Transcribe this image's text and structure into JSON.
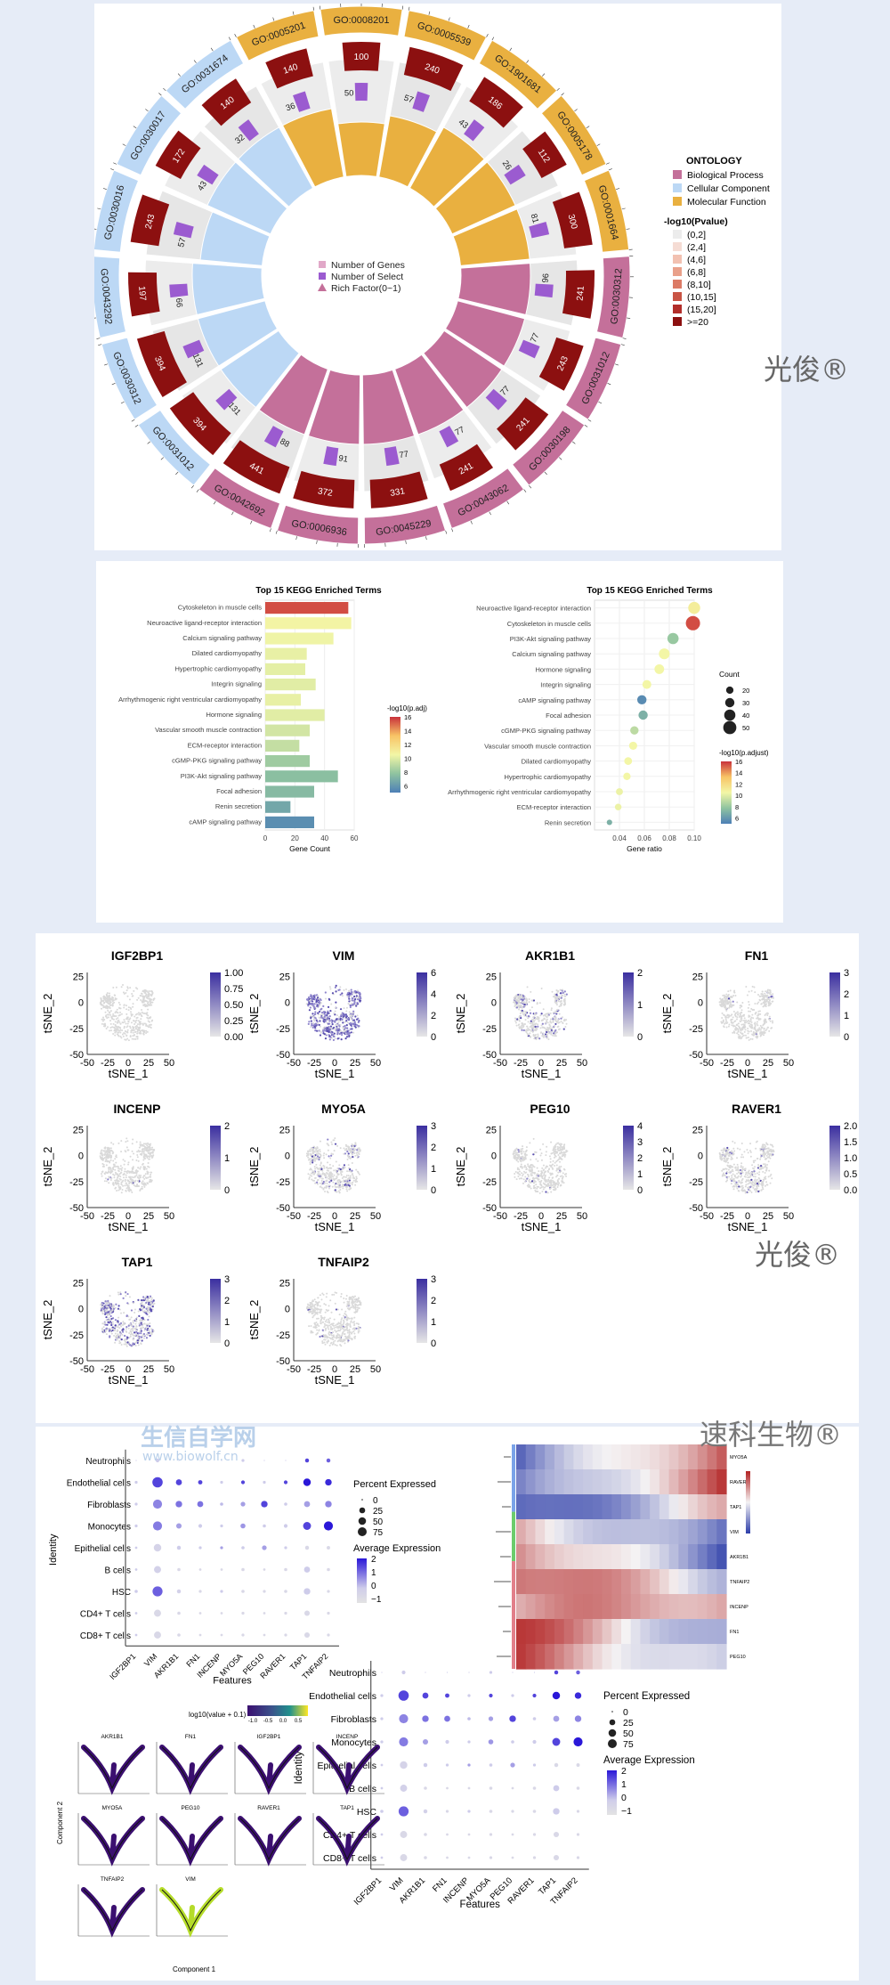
{
  "watermarks": {
    "brand1": "光俊®",
    "brand2": "光俊®",
    "brand3": "速科生物®",
    "site": "生信自学网",
    "url": "www.biowolf.cn"
  },
  "chart_data": [
    {
      "type": "circular-go",
      "terms": [
        {
          "id": "GO:0008201",
          "cls": "MF",
          "bg": 300,
          "sel": 100,
          "n2": 50
        },
        {
          "id": "GO:0005539",
          "cls": "MF",
          "bg": 300,
          "sel": 240,
          "n2": 57
        },
        {
          "id": "GO:1901681",
          "cls": "MF",
          "bg": 300,
          "sel": 186,
          "n2": 43
        },
        {
          "id": "GO:0005178",
          "cls": "MF",
          "bg": 300,
          "sel": 112,
          "n2": 26
        },
        {
          "id": "GO:0001664",
          "cls": "MF",
          "bg": 400,
          "sel": 300,
          "n2": 81
        },
        {
          "id": "GO:0030312",
          "cls": "BP",
          "bg": 400,
          "sel": 241,
          "n2": 96
        },
        {
          "id": "GO:0031012",
          "cls": "BP",
          "bg": 400,
          "sel": 243,
          "n2": 77
        },
        {
          "id": "GO:0030198",
          "cls": "BP",
          "bg": 400,
          "sel": 241,
          "n2": 77
        },
        {
          "id": "GO:0043062",
          "cls": "BP",
          "bg": 400,
          "sel": 241,
          "n2": 77
        },
        {
          "id": "GO:0045229",
          "cls": "BP",
          "bg": 400,
          "sel": 331,
          "n2": 77
        },
        {
          "id": "GO:0006936",
          "cls": "BP",
          "bg": 400,
          "sel": 372,
          "n2": 91
        },
        {
          "id": "GO:0042692",
          "cls": "BP",
          "bg": 400,
          "sel": 441,
          "n2": 88
        },
        {
          "id": "GO:0031012",
          "cls": "CC",
          "bg": 400,
          "sel": 394,
          "n2": 131
        },
        {
          "id": "GO:0030312",
          "cls": "CC",
          "bg": 400,
          "sel": 394,
          "n2": 131
        },
        {
          "id": "GO:0043292",
          "cls": "CC",
          "bg": 400,
          "sel": 197,
          "n2": 66
        },
        {
          "id": "GO:0030016",
          "cls": "CC",
          "bg": 400,
          "sel": 243,
          "n2": 57
        },
        {
          "id": "GO:0030017",
          "cls": "CC",
          "bg": 400,
          "sel": 172,
          "n2": 43
        },
        {
          "id": "GO:0031674",
          "cls": "CC",
          "bg": 300,
          "sel": 140,
          "n2": 32
        },
        {
          "id": "GO:0005201",
          "cls": "MF",
          "bg": 300,
          "sel": 140,
          "n2": 36
        }
      ],
      "inner_legend": [
        "Number of Genes",
        "Number of Select",
        "Rich Factor(0~1)"
      ],
      "ontology_title": "ONTOLOGY",
      "ontology": [
        {
          "label": "Biological Process",
          "color": "#c4709a"
        },
        {
          "label": "Cellular Component",
          "color": "#bcd8f5"
        },
        {
          "label": "Molecular Function",
          "color": "#e9b040"
        }
      ],
      "pvalue_title": "-log10(Pvalue)",
      "pvalue_bins": [
        {
          "label": "(0,2]",
          "color": "#ececec"
        },
        {
          "label": "(2,4]",
          "color": "#f5dcd4"
        },
        {
          "label": "(4,6]",
          "color": "#f2c1b1"
        },
        {
          "label": "(6,8]",
          "color": "#e9a08a"
        },
        {
          "label": "(8,10]",
          "color": "#dc7b66"
        },
        {
          "label": "(10,15]",
          "color": "#c95445"
        },
        {
          "label": "(15,20]",
          "color": "#b22e2a"
        },
        {
          "label": ">=20",
          "color": "#8c1010"
        }
      ]
    },
    {
      "type": "bar",
      "title": "Top 15 KEGG Enriched Terms",
      "xlabel": "Gene Count",
      "legend_title": "-log10(p.adj)",
      "legend_ticks": [
        6,
        8,
        10,
        12,
        14,
        16
      ],
      "xlim": [
        0,
        60
      ],
      "xticks": [
        0,
        20,
        40,
        60
      ],
      "categories": [
        "Cytoskeleton in muscle cells",
        "Neuroactive ligand-receptor interaction",
        "Calcium signaling pathway",
        "Dilated cardiomyopathy",
        "Hypertrophic cardiomyopathy",
        "Integrin signaling",
        "Arrhythmogenic right ventricular cardiomyopathy",
        "Hormone signaling",
        "Vascular smooth muscle contraction",
        "ECM-receptor interaction",
        "cGMP-PKG signaling pathway",
        "PI3K-Akt signaling pathway",
        "Focal adhesion",
        "Renin secretion",
        "cAMP signaling pathway"
      ],
      "values": [
        56,
        58,
        46,
        28,
        27,
        34,
        24,
        40,
        30,
        23,
        30,
        49,
        33,
        17,
        33
      ],
      "color_values": [
        15.5,
        10.6,
        10.4,
        10.2,
        10.1,
        10.0,
        10.2,
        10.0,
        9.6,
        9.2,
        8.2,
        7.6,
        7.4,
        6.6,
        5.6
      ]
    },
    {
      "type": "scatter",
      "title": "Top 15 KEGG Enriched Terms",
      "xlabel": "Gene ratio",
      "size_title": "Count",
      "size_ticks": [
        20,
        30,
        40,
        50
      ],
      "color_title": "-log10(p.adjust)",
      "color_ticks": [
        6,
        8,
        10,
        12,
        14,
        16
      ],
      "xlim": [
        0.02,
        0.1
      ],
      "xticks": [
        0.04,
        0.06,
        0.08,
        0.1
      ],
      "xtick_labels": [
        "0.04",
        "0.06",
        "0.08",
        "0.10"
      ],
      "categories": [
        "Neuroactive ligand-receptor interaction",
        "Cytoskeleton in muscle cells",
        "PI3K-Akt signaling pathway",
        "Calcium signaling pathway",
        "Hormone signaling",
        "Integrin signaling",
        "cAMP signaling pathway",
        "Focal adhesion",
        "cGMP-PKG signaling pathway",
        "Vascular smooth muscle contraction",
        "Dilated cardiomyopathy",
        "Hypertrophic cardiomyopathy",
        "Arrhythmogenic right ventricular cardiomyopathy",
        "ECM-receptor interaction",
        "Renin secretion"
      ],
      "x": [
        0.1,
        0.099,
        0.083,
        0.076,
        0.072,
        0.062,
        0.058,
        0.059,
        0.052,
        0.051,
        0.047,
        0.046,
        0.04,
        0.039,
        0.032
      ],
      "count": [
        44,
        56,
        40,
        38,
        32,
        28,
        30,
        30,
        25,
        24,
        22,
        20,
        18,
        16,
        10
      ],
      "color": [
        11,
        15.5,
        8,
        10.5,
        10.5,
        10.5,
        5.5,
        7,
        9,
        10.5,
        10.5,
        10.5,
        10.3,
        10.3,
        7
      ]
    },
    {
      "type": "scatter-grid",
      "xlabel": "tSNE_1",
      "ylabel": "tSNE_2",
      "xticks": [
        -50,
        -25,
        0,
        25,
        50
      ],
      "yticks": [
        -50,
        -25,
        0,
        25
      ],
      "panels": [
        {
          "gene": "IGF2BP1",
          "ticks": [
            "1.00",
            "0.75",
            "0.50",
            "0.25",
            "0.00"
          ],
          "density": 0.0
        },
        {
          "gene": "VIM",
          "ticks": [
            "6",
            "4",
            "2",
            "0"
          ],
          "density": 0.7
        },
        {
          "gene": "AKR1B1",
          "ticks": [
            "2",
            "1",
            "0"
          ],
          "density": 0.15
        },
        {
          "gene": "FN1",
          "ticks": [
            "3",
            "2",
            "1",
            "0"
          ],
          "density": 0.02
        },
        {
          "gene": "INCENP",
          "ticks": [
            "2",
            "1",
            "0"
          ],
          "density": 0.01
        },
        {
          "gene": "MYO5A",
          "ticks": [
            "3",
            "2",
            "1",
            "0"
          ],
          "density": 0.12
        },
        {
          "gene": "PEG10",
          "ticks": [
            "4",
            "3",
            "2",
            "1",
            "0"
          ],
          "density": 0.02
        },
        {
          "gene": "RAVER1",
          "ticks": [
            "2.0",
            "1.5",
            "1.0",
            "0.5",
            "0.0"
          ],
          "density": 0.05
        },
        {
          "gene": "TAP1",
          "ticks": [
            "3",
            "2",
            "1",
            "0"
          ],
          "density": 0.4
        },
        {
          "gene": "TNFAIP2",
          "ticks": [
            "3",
            "2",
            "1",
            "0"
          ],
          "density": 0.03
        }
      ]
    },
    {
      "type": "dotplot",
      "xlabel": "Features",
      "ylabel": "Identity",
      "features": [
        "IGF2BP1",
        "VIM",
        "AKR1B1",
        "FN1",
        "INCENP",
        "MYO5A",
        "PEG10",
        "RAVER1",
        "TAP1",
        "TNFAIP2"
      ],
      "identities": [
        "Neutrophils",
        "Endothelial cells",
        "Fibroblasts",
        "Monocytes",
        "Epithelial cells",
        "B cells",
        "HSC",
        "CD4+ T cells",
        "CD8+ T cells"
      ],
      "pct_title": "Percent Expressed",
      "pct_ticks": [
        "0",
        "25",
        "50",
        "75"
      ],
      "avg_title": "Average Expression",
      "avg_ticks": [
        "2",
        "1",
        "0",
        "−1"
      ],
      "pct": [
        [
          0,
          5,
          0,
          0,
          0,
          2,
          0,
          0,
          6,
          6
        ],
        [
          2,
          75,
          20,
          8,
          2,
          5,
          2,
          5,
          35,
          25
        ],
        [
          2,
          55,
          25,
          20,
          3,
          10,
          25,
          3,
          20,
          25
        ],
        [
          2,
          55,
          15,
          5,
          2,
          12,
          3,
          5,
          40,
          55
        ],
        [
          1,
          35,
          6,
          2,
          2,
          3,
          10,
          2,
          6,
          4
        ],
        [
          1,
          30,
          3,
          1,
          1,
          3,
          1,
          3,
          20,
          3
        ],
        [
          3,
          70,
          6,
          2,
          2,
          3,
          2,
          3,
          25,
          2
        ],
        [
          1,
          30,
          3,
          1,
          1,
          2,
          1,
          2,
          15,
          2
        ],
        [
          1,
          30,
          3,
          1,
          1,
          2,
          1,
          2,
          15,
          2
        ]
      ],
      "avg": [
        [
          0,
          0,
          0,
          0,
          0,
          0,
          0,
          0,
          1.5,
          1.2
        ],
        [
          0,
          1.5,
          1.5,
          1.5,
          0,
          1.5,
          0,
          1.5,
          2,
          1.8
        ],
        [
          0,
          0.8,
          1,
          1,
          0.2,
          0.5,
          1.5,
          0,
          0.5,
          0.8
        ],
        [
          0,
          0.9,
          0.5,
          0,
          0,
          0.6,
          0,
          0,
          1.5,
          2
        ],
        [
          0,
          -0.3,
          0,
          0,
          0.5,
          0,
          0.5,
          0,
          -0.5,
          -0.5
        ],
        [
          0,
          -0.2,
          -0.5,
          -0.5,
          -0.5,
          -0.5,
          -0.5,
          -0.5,
          0,
          -0.5
        ],
        [
          0,
          1.2,
          -0.2,
          -0.5,
          0,
          -0.5,
          -0.5,
          -0.5,
          0,
          -0.5
        ],
        [
          0,
          -0.5,
          -0.5,
          -0.5,
          -0.5,
          -0.5,
          -0.5,
          -0.5,
          -0.5,
          -0.5
        ],
        [
          0,
          -0.5,
          -0.5,
          -0.5,
          -0.5,
          -0.5,
          -0.5,
          -0.5,
          -0.5,
          -0.5
        ]
      ]
    },
    {
      "type": "heatmap",
      "row_labels": [
        "MYO5A",
        "RAVER1",
        "TAP1",
        "VIM",
        "AKR1B1",
        "TNFAIP2",
        "INCENP",
        "FN1",
        "PEG10"
      ]
    },
    {
      "type": "scatter-grid",
      "legend_title": "log10(value + 0.1)",
      "legend_ticks": [
        "-1.0",
        "-0.5",
        "0.0",
        "0.5"
      ],
      "xlabel": "Component 1",
      "ylabel": "Component 2",
      "panels": [
        "AKR1B1",
        "FN1",
        "IGF2BP1",
        "INCENP",
        "MYO5A",
        "PEG10",
        "RAVER1",
        "TAP1",
        "TNFAIP2",
        "VIM"
      ]
    },
    {
      "type": "dotplot",
      "xlabel": "Features",
      "ylabel": "Identity",
      "pct_title": "Percent Expressed",
      "avg_title": "Average Expression"
    }
  ]
}
